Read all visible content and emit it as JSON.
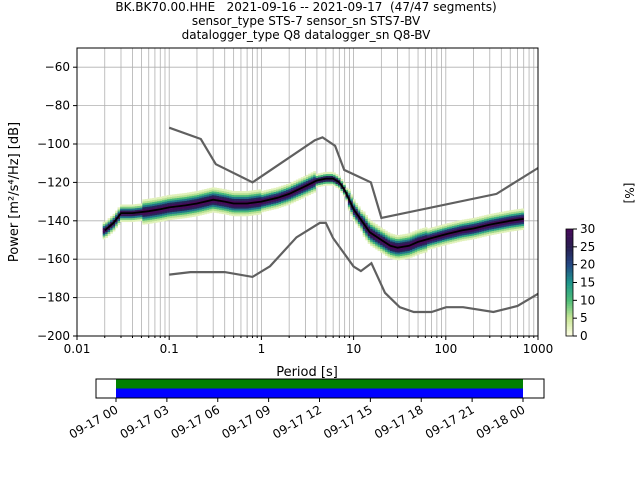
{
  "title_lines": [
    "BK.BK70.00.HHE   2021-09-16 -- 2021-09-17  (47/47 segments)",
    "sensor_type STS-7 sensor_sn STS7-BV",
    "datalogger_type Q8 datalogger_sn Q8-BV"
  ],
  "chart_data": [
    {
      "type": "heatmap",
      "title": "BK.BK70.00.HHE   2021-09-16 -- 2021-09-17  (47/47 segments)",
      "xlabel": "Period [s]",
      "ylabel": "Power [m²/s⁴/Hz] [dB]",
      "x_scale": "log",
      "xlim": [
        0.01,
        1000
      ],
      "ylim": [
        -200,
        -50
      ],
      "x_ticks": [
        0.01,
        0.1,
        1,
        10,
        100,
        1000
      ],
      "x_tick_labels": [
        "0.01",
        "0.1",
        "1",
        "10",
        "100",
        "1000"
      ],
      "y_ticks": [
        -200,
        -180,
        -160,
        -140,
        -120,
        -100,
        -80,
        -60
      ],
      "y_tick_labels": [
        "−200",
        "−180",
        "−160",
        "−140",
        "−120",
        "−100",
        "−80",
        "−60"
      ],
      "grid": true,
      "colorbar": {
        "label": "[%]",
        "range": [
          0,
          30
        ],
        "ticks": [
          0,
          5,
          10,
          15,
          20,
          25,
          30
        ],
        "tick_labels": [
          "0",
          "5",
          "10",
          "15",
          "20",
          "25",
          "30"
        ],
        "colormap": "pqlx-like (white-yellow-green-navy-purple)"
      },
      "series": [
        {
          "role": "mean",
          "color": "#000000",
          "x": [
            0.02,
            0.025,
            0.03,
            0.04,
            0.06,
            0.08,
            0.1,
            0.15,
            0.2,
            0.3,
            0.4,
            0.5,
            0.7,
            1,
            1.5,
            2,
            3,
            4,
            5,
            6,
            7,
            8,
            10,
            15,
            20,
            25,
            30,
            40,
            50,
            70,
            100,
            150,
            200,
            300,
            500,
            700
          ],
          "y": [
            -145,
            -141,
            -136,
            -136,
            -135,
            -134,
            -133,
            -132,
            -131,
            -129,
            -130,
            -131,
            -131,
            -130,
            -128,
            -126,
            -122,
            -119,
            -118,
            -118,
            -120,
            -124,
            -134,
            -146,
            -150,
            -153,
            -154,
            -153,
            -151,
            -149,
            -147,
            -145,
            -144,
            -142,
            -140,
            -139
          ]
        },
        {
          "role": "nhnm",
          "color": "#606060",
          "x": [
            0.1,
            0.22,
            0.32,
            0.8,
            3.8,
            4.6,
            6.3,
            7.9,
            15.4,
            20,
            354.8,
            1000
          ],
          "y": [
            -91.5,
            -97.4,
            -110.5,
            -120,
            -98,
            -96.5,
            -101,
            -113.5,
            -120,
            -138.5,
            -126,
            -112.5
          ]
        },
        {
          "role": "nlnm",
          "color": "#606060",
          "x": [
            0.1,
            0.17,
            0.4,
            0.8,
            1.24,
            2.4,
            4.3,
            5,
            6,
            10,
            12,
            15.6,
            21.9,
            31.6,
            45,
            70,
            101,
            154,
            328,
            600,
            1000
          ],
          "y": [
            -168,
            -166.7,
            -166.7,
            -169.2,
            -163.7,
            -148.6,
            -141.1,
            -141.1,
            -149,
            -163.8,
            -166.2,
            -162.1,
            -177.5,
            -185,
            -187.5,
            -187.5,
            -185,
            -185,
            -187.5,
            -184.4,
            -178
          ]
        }
      ]
    },
    {
      "type": "timeline",
      "x_tick_labels": [
        "09-17 00",
        "09-17 03",
        "09-17 06",
        "09-17 09",
        "09-17 12",
        "09-17 15",
        "09-17 18",
        "09-17 21",
        "09-18 00"
      ],
      "bands": [
        {
          "role": "data availability",
          "color": "#008000",
          "start": "09-17 00",
          "end": "09-18 00"
        },
        {
          "role": "psd used",
          "color": "#0000ff",
          "start": "09-17 00",
          "end": "09-18 00"
        }
      ]
    }
  ]
}
